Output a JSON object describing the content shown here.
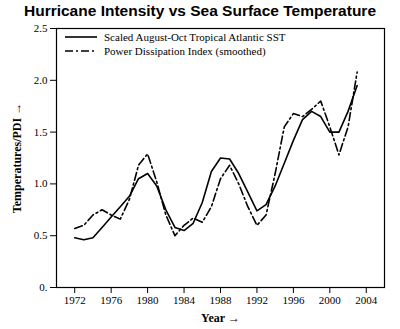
{
  "chart_data": {
    "type": "line",
    "title": "Hurricane Intensity vs Sea Surface Temperature",
    "x_label": "Year",
    "y_label": "Temperatures/PDI",
    "x": [
      1972,
      1973,
      1974,
      1975,
      1976,
      1977,
      1978,
      1979,
      1980,
      1981,
      1982,
      1983,
      1984,
      1985,
      1986,
      1987,
      1988,
      1989,
      1990,
      1991,
      1992,
      1993,
      1994,
      1995,
      1996,
      1997,
      1998,
      1999,
      2000,
      2001,
      2002,
      2003
    ],
    "series": [
      {
        "name": "Scaled August-Oct Tropical Atlantic SST",
        "color": "#000000",
        "line_style": "solid",
        "values": [
          0.48,
          0.46,
          0.48,
          0.58,
          0.68,
          0.78,
          0.88,
          1.05,
          1.1,
          0.98,
          0.75,
          0.58,
          0.55,
          0.62,
          0.82,
          1.12,
          1.25,
          1.24,
          1.1,
          0.92,
          0.74,
          0.8,
          0.98,
          1.2,
          1.42,
          1.62,
          1.7,
          1.65,
          1.5,
          1.5,
          1.7,
          1.95
        ]
      },
      {
        "name": "Power Dissipation Index (smoothed)",
        "color": "#000000",
        "line_style": "dashdot",
        "values": [
          0.57,
          0.6,
          0.7,
          0.75,
          0.7,
          0.66,
          0.85,
          1.18,
          1.29,
          1.02,
          0.7,
          0.5,
          0.6,
          0.67,
          0.63,
          0.78,
          1.05,
          1.18,
          1.0,
          0.78,
          0.6,
          0.7,
          1.1,
          1.55,
          1.68,
          1.65,
          1.72,
          1.8,
          1.55,
          1.28,
          1.55,
          2.08
        ]
      }
    ],
    "xlim": [
      1970,
      2006
    ],
    "xticks": [
      1972,
      1976,
      1980,
      1984,
      1988,
      1992,
      1996,
      2000,
      2004
    ],
    "ylim": [
      0,
      2.5
    ],
    "yticks": [
      {
        "value": 0,
        "label": "0."
      },
      0.5,
      {
        "value": 1,
        "label": "1.0"
      },
      1.5,
      {
        "value": 2,
        "label": "2.0"
      },
      2.5
    ],
    "legend": "top-left",
    "grid": false
  }
}
